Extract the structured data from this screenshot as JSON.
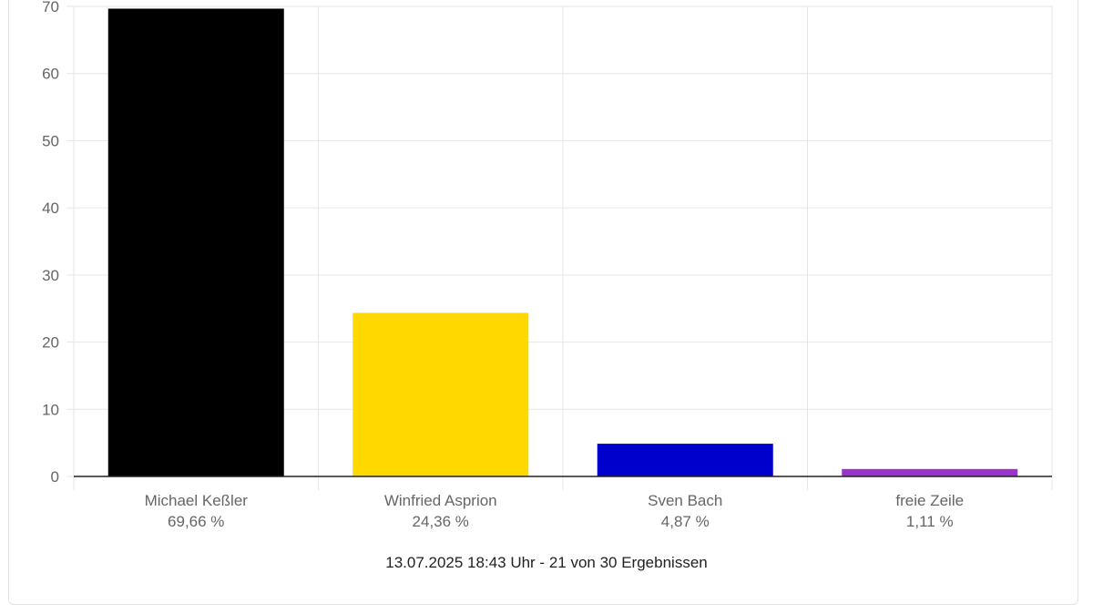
{
  "chart_data": {
    "type": "bar",
    "categories": [
      "Michael Keßler",
      "Winfried Asprion",
      "Sven Bach",
      "freie Zeile"
    ],
    "percent_labels": [
      "69,66 %",
      "24,36 %",
      "4,87 %",
      "1,11 %"
    ],
    "values": [
      69.66,
      24.36,
      4.87,
      1.11
    ],
    "colors": [
      "#000000",
      "#ffd800",
      "#0000cc",
      "#9933cc"
    ],
    "ylim": [
      0,
      70
    ],
    "yticks": [
      0,
      10,
      20,
      30,
      40,
      50,
      60,
      70
    ],
    "grid": true,
    "title": "",
    "xlabel": "",
    "ylabel": ""
  },
  "footer": {
    "status_text": "13.07.2025 18:43 Uhr - 21 von 30 Ergebnissen"
  }
}
